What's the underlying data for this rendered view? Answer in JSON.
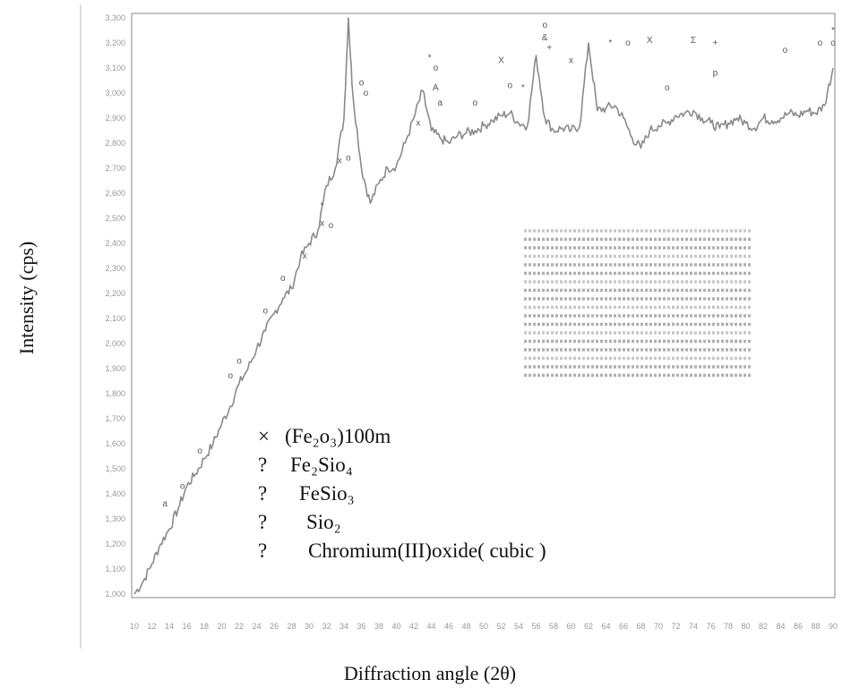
{
  "chart_data": {
    "type": "line",
    "title": "",
    "xlabel": "Diffraction angle (2θ)",
    "ylabel": "Intensity (cps)",
    "xlim": [
      10,
      90
    ],
    "ylim": [
      1000,
      3300
    ],
    "x_ticks": [
      10,
      12,
      14,
      16,
      18,
      20,
      22,
      24,
      26,
      28,
      30,
      32,
      34,
      36,
      38,
      40,
      42,
      44,
      46,
      48,
      50,
      52,
      54,
      56,
      58,
      60,
      62,
      64,
      66,
      68,
      70,
      72,
      74,
      76,
      78,
      80,
      82,
      84,
      86,
      88,
      90
    ],
    "y_ticks": [
      1000,
      1100,
      1200,
      1300,
      1400,
      1500,
      1600,
      1700,
      1800,
      1900,
      2000,
      2100,
      2200,
      2300,
      2400,
      2500,
      2600,
      2700,
      2800,
      2900,
      3000,
      3100,
      3200,
      3300
    ],
    "grid": false,
    "legend_position": "center",
    "series": [
      {
        "name": "",
        "color": "#8a8a8a",
        "points": [
          [
            10,
            1000
          ],
          [
            11,
            1050
          ],
          [
            12,
            1120
          ],
          [
            13,
            1200
          ],
          [
            14,
            1260
          ],
          [
            15,
            1340
          ],
          [
            16,
            1430
          ],
          [
            17,
            1480
          ],
          [
            18,
            1540
          ],
          [
            19,
            1600
          ],
          [
            20,
            1680
          ],
          [
            21,
            1750
          ],
          [
            22,
            1840
          ],
          [
            23,
            1900
          ],
          [
            24,
            1980
          ],
          [
            25,
            2050
          ],
          [
            26,
            2120
          ],
          [
            27,
            2180
          ],
          [
            28,
            2220
          ],
          [
            29,
            2340
          ],
          [
            30,
            2400
          ],
          [
            31,
            2450
          ],
          [
            32,
            2630
          ],
          [
            33,
            2700
          ],
          [
            34,
            2900
          ],
          [
            34.5,
            3300
          ],
          [
            35,
            3000
          ],
          [
            36,
            2700
          ],
          [
            37,
            2560
          ],
          [
            38,
            2640
          ],
          [
            39,
            2700
          ],
          [
            40,
            2710
          ],
          [
            41,
            2800
          ],
          [
            42,
            2900
          ],
          [
            43,
            3010
          ],
          [
            44,
            2850
          ],
          [
            45,
            2820
          ],
          [
            46,
            2800
          ],
          [
            47,
            2830
          ],
          [
            48,
            2840
          ],
          [
            49,
            2850
          ],
          [
            50,
            2870
          ],
          [
            51,
            2890
          ],
          [
            52,
            2910
          ],
          [
            53,
            2920
          ],
          [
            54,
            2880
          ],
          [
            55,
            2870
          ],
          [
            56,
            3150
          ],
          [
            57,
            2900
          ],
          [
            58,
            2850
          ],
          [
            59,
            2860
          ],
          [
            60,
            2850
          ],
          [
            61,
            2870
          ],
          [
            62,
            3200
          ],
          [
            63,
            2930
          ],
          [
            64,
            2940
          ],
          [
            65,
            2950
          ],
          [
            66,
            2900
          ],
          [
            67,
            2820
          ],
          [
            68,
            2780
          ],
          [
            69,
            2850
          ],
          [
            70,
            2870
          ],
          [
            71,
            2880
          ],
          [
            72,
            2910
          ],
          [
            73,
            2920
          ],
          [
            74,
            2930
          ],
          [
            75,
            2900
          ],
          [
            76,
            2880
          ],
          [
            77,
            2860
          ],
          [
            78,
            2880
          ],
          [
            79,
            2900
          ],
          [
            80,
            2880
          ],
          [
            81,
            2860
          ],
          [
            82,
            2900
          ],
          [
            83,
            2890
          ],
          [
            84,
            2900
          ],
          [
            85,
            2920
          ],
          [
            86,
            2910
          ],
          [
            87,
            2930
          ],
          [
            88,
            2920
          ],
          [
            89,
            2950
          ],
          [
            90,
            3100
          ]
        ]
      }
    ],
    "peak_markers": [
      {
        "x": 13.5,
        "y": 1350,
        "label": "a"
      },
      {
        "x": 15.5,
        "y": 1420,
        "label": "o"
      },
      {
        "x": 17.5,
        "y": 1560,
        "label": "o"
      },
      {
        "x": 21,
        "y": 1860,
        "label": "o"
      },
      {
        "x": 22,
        "y": 1920,
        "label": "o"
      },
      {
        "x": 25,
        "y": 2120,
        "label": "o"
      },
      {
        "x": 27,
        "y": 2250,
        "label": "o"
      },
      {
        "x": 29.5,
        "y": 2340,
        "label": "x"
      },
      {
        "x": 31.5,
        "y": 2470,
        "label": "x"
      },
      {
        "x": 32.5,
        "y": 2460,
        "label": "o"
      },
      {
        "x": 31.5,
        "y": 2540,
        "label": "*"
      },
      {
        "x": 33.5,
        "y": 2720,
        "label": "x"
      },
      {
        "x": 34.5,
        "y": 2730,
        "label": "o"
      },
      {
        "x": 36,
        "y": 3030,
        "label": "o"
      },
      {
        "x": 36.5,
        "y": 2990,
        "label": "o"
      },
      {
        "x": 42.5,
        "y": 2870,
        "label": "x"
      },
      {
        "x": 43.8,
        "y": 3130,
        "label": "*"
      },
      {
        "x": 44.5,
        "y": 3090,
        "label": "o"
      },
      {
        "x": 44.5,
        "y": 3010,
        "label": "A"
      },
      {
        "x": 45,
        "y": 2950,
        "label": "a"
      },
      {
        "x": 49,
        "y": 2950,
        "label": "o"
      },
      {
        "x": 52,
        "y": 3120,
        "label": "X"
      },
      {
        "x": 53,
        "y": 3020,
        "label": "o"
      },
      {
        "x": 54.5,
        "y": 3010,
        "label": "*"
      },
      {
        "x": 57,
        "y": 3260,
        "label": "o"
      },
      {
        "x": 57,
        "y": 3210,
        "label": "&"
      },
      {
        "x": 57.5,
        "y": 3170,
        "label": "+"
      },
      {
        "x": 60,
        "y": 3120,
        "label": "x"
      },
      {
        "x": 64.5,
        "y": 3190,
        "label": "*"
      },
      {
        "x": 66.5,
        "y": 3190,
        "label": "o"
      },
      {
        "x": 69,
        "y": 3200,
        "label": "X"
      },
      {
        "x": 71,
        "y": 3010,
        "label": "o"
      },
      {
        "x": 74,
        "y": 3200,
        "label": "Σ"
      },
      {
        "x": 76.5,
        "y": 3190,
        "label": "+"
      },
      {
        "x": 76.5,
        "y": 3070,
        "label": "p"
      },
      {
        "x": 84.5,
        "y": 3160,
        "label": "o"
      },
      {
        "x": 88.5,
        "y": 3190,
        "label": "o"
      },
      {
        "x": 90,
        "y": 3240,
        "label": "*"
      },
      {
        "x": 90,
        "y": 3190,
        "label": "o"
      }
    ]
  },
  "axes": {
    "xlabel": "Diffraction angle (2θ)",
    "ylabel": "Intensity (cps)"
  },
  "legend": {
    "items": [
      {
        "marker": "×",
        "label": "(Fe₂o₃)100m"
      },
      {
        "marker": "?",
        "label": "Fe₂Sio₄"
      },
      {
        "marker": "?",
        "label": "FeSio₃"
      },
      {
        "marker": "?",
        "label": "Sio₂"
      },
      {
        "marker": "?",
        "label": "Chromium(III)oxide( cubic )"
      }
    ]
  }
}
